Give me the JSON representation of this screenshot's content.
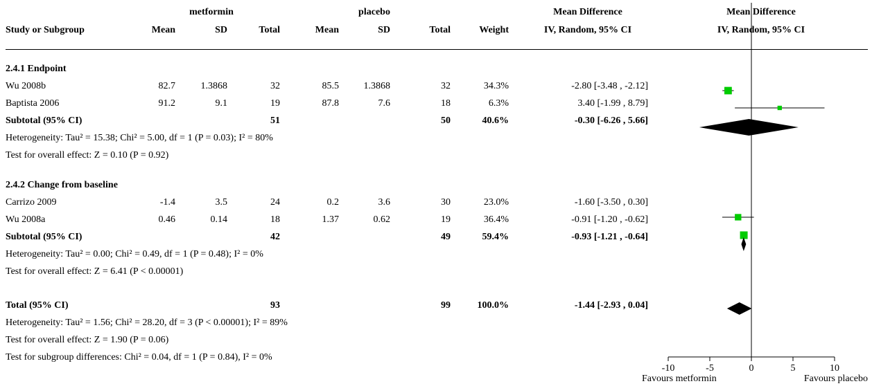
{
  "headers": {
    "group1": "metformin",
    "group2": "placebo",
    "md_text_top": "Mean Difference",
    "md_text_bottom": "IV, Random, 95% CI",
    "md_plot_top": "Mean Difference",
    "md_plot_bottom": "IV, Random, 95% CI",
    "study": "Study or Subgroup",
    "mean1": "Mean",
    "sd1": "SD",
    "total1": "Total",
    "mean2": "Mean",
    "sd2": "SD",
    "total2": "Total",
    "weight": "Weight"
  },
  "subgroups": [
    {
      "title": "2.4.1 Endpoint",
      "studies": [
        {
          "name": "Wu 2008b",
          "mean1": "82.7",
          "sd1": "1.3868",
          "total1": "32",
          "mean2": "85.5",
          "sd2": "1.3868",
          "total2": "32",
          "weight": "34.3%",
          "ci": "-2.80 [-3.48 , -2.12]"
        },
        {
          "name": "Baptista 2006",
          "mean1": "91.2",
          "sd1": "9.1",
          "total1": "19",
          "mean2": "87.8",
          "sd2": "7.6",
          "total2": "18",
          "weight": "6.3%",
          "ci": "3.40 [-1.99 , 8.79]"
        }
      ],
      "subtotal": {
        "label": "Subtotal (95% CI)",
        "total1": "51",
        "total2": "50",
        "weight": "40.6%",
        "ci": "-0.30 [-6.26 , 5.66]"
      },
      "heterogeneity": "Heterogeneity: Tau² = 15.38; Chi² = 5.00, df = 1 (P = 0.03); I² = 80%",
      "overall": "Test for overall effect: Z = 0.10 (P = 0.92)"
    },
    {
      "title": "2.4.2 Change from baseline",
      "studies": [
        {
          "name": "Carrizo 2009",
          "mean1": "-1.4",
          "sd1": "3.5",
          "total1": "24",
          "mean2": "0.2",
          "sd2": "3.6",
          "total2": "30",
          "weight": "23.0%",
          "ci": "-1.60 [-3.50 , 0.30]"
        },
        {
          "name": "Wu 2008a",
          "mean1": "0.46",
          "sd1": "0.14",
          "total1": "18",
          "mean2": "1.37",
          "sd2": "0.62",
          "total2": "19",
          "weight": "36.4%",
          "ci": "-0.91 [-1.20 , -0.62]"
        }
      ],
      "subtotal": {
        "label": "Subtotal (95% CI)",
        "total1": "42",
        "total2": "49",
        "weight": "59.4%",
        "ci": "-0.93 [-1.21 , -0.64]"
      },
      "heterogeneity": "Heterogeneity: Tau² = 0.00; Chi² = 0.49, df = 1 (P = 0.48); I² = 0%",
      "overall": "Test for overall effect: Z = 6.41 (P < 0.00001)"
    }
  ],
  "total": {
    "label": "Total (95% CI)",
    "total1": "93",
    "total2": "99",
    "weight": "100.0%",
    "ci": "-1.44 [-2.93 , 0.04]"
  },
  "total_heterogeneity": "Heterogeneity: Tau² = 1.56; Chi² = 28.20, df = 3 (P < 0.00001); I² = 89%",
  "total_overall": "Test for overall effect: Z = 1.90 (P = 0.06)",
  "subgroup_diff": "Test for subgroup differences: Chi² = 0.04, df = 1 (P = 0.84), I² = 0%",
  "axis": {
    "favours_left": "Favours metformin",
    "favours_right": "Favours placebo"
  },
  "colors": {
    "study_marker": "#00cc00",
    "diamond": "#000000"
  },
  "chart_data": {
    "type": "forest",
    "xlim": [
      -10,
      10
    ],
    "ticks": [
      -10,
      -5,
      0,
      5,
      10
    ],
    "tick_labels": [
      "-10",
      "-5",
      "0",
      "5",
      "10"
    ],
    "studies": [
      {
        "name": "Wu 2008b",
        "md": -2.8,
        "lo": -3.48,
        "hi": -2.12,
        "weight": 34.3
      },
      {
        "name": "Baptista 2006",
        "md": 3.4,
        "lo": -1.99,
        "hi": 8.79,
        "weight": 6.3
      },
      {
        "name": "Carrizo 2009",
        "md": -1.6,
        "lo": -3.5,
        "hi": 0.3,
        "weight": 23.0
      },
      {
        "name": "Wu 2008a",
        "md": -0.91,
        "lo": -1.2,
        "hi": -0.62,
        "weight": 36.4
      }
    ],
    "summaries": [
      {
        "name": "Subtotal 2.4.1",
        "md": -0.3,
        "lo": -6.26,
        "hi": 5.66
      },
      {
        "name": "Subtotal 2.4.2",
        "md": -0.93,
        "lo": -1.21,
        "hi": -0.64
      },
      {
        "name": "Total",
        "md": -1.44,
        "lo": -2.93,
        "hi": 0.04
      }
    ]
  }
}
